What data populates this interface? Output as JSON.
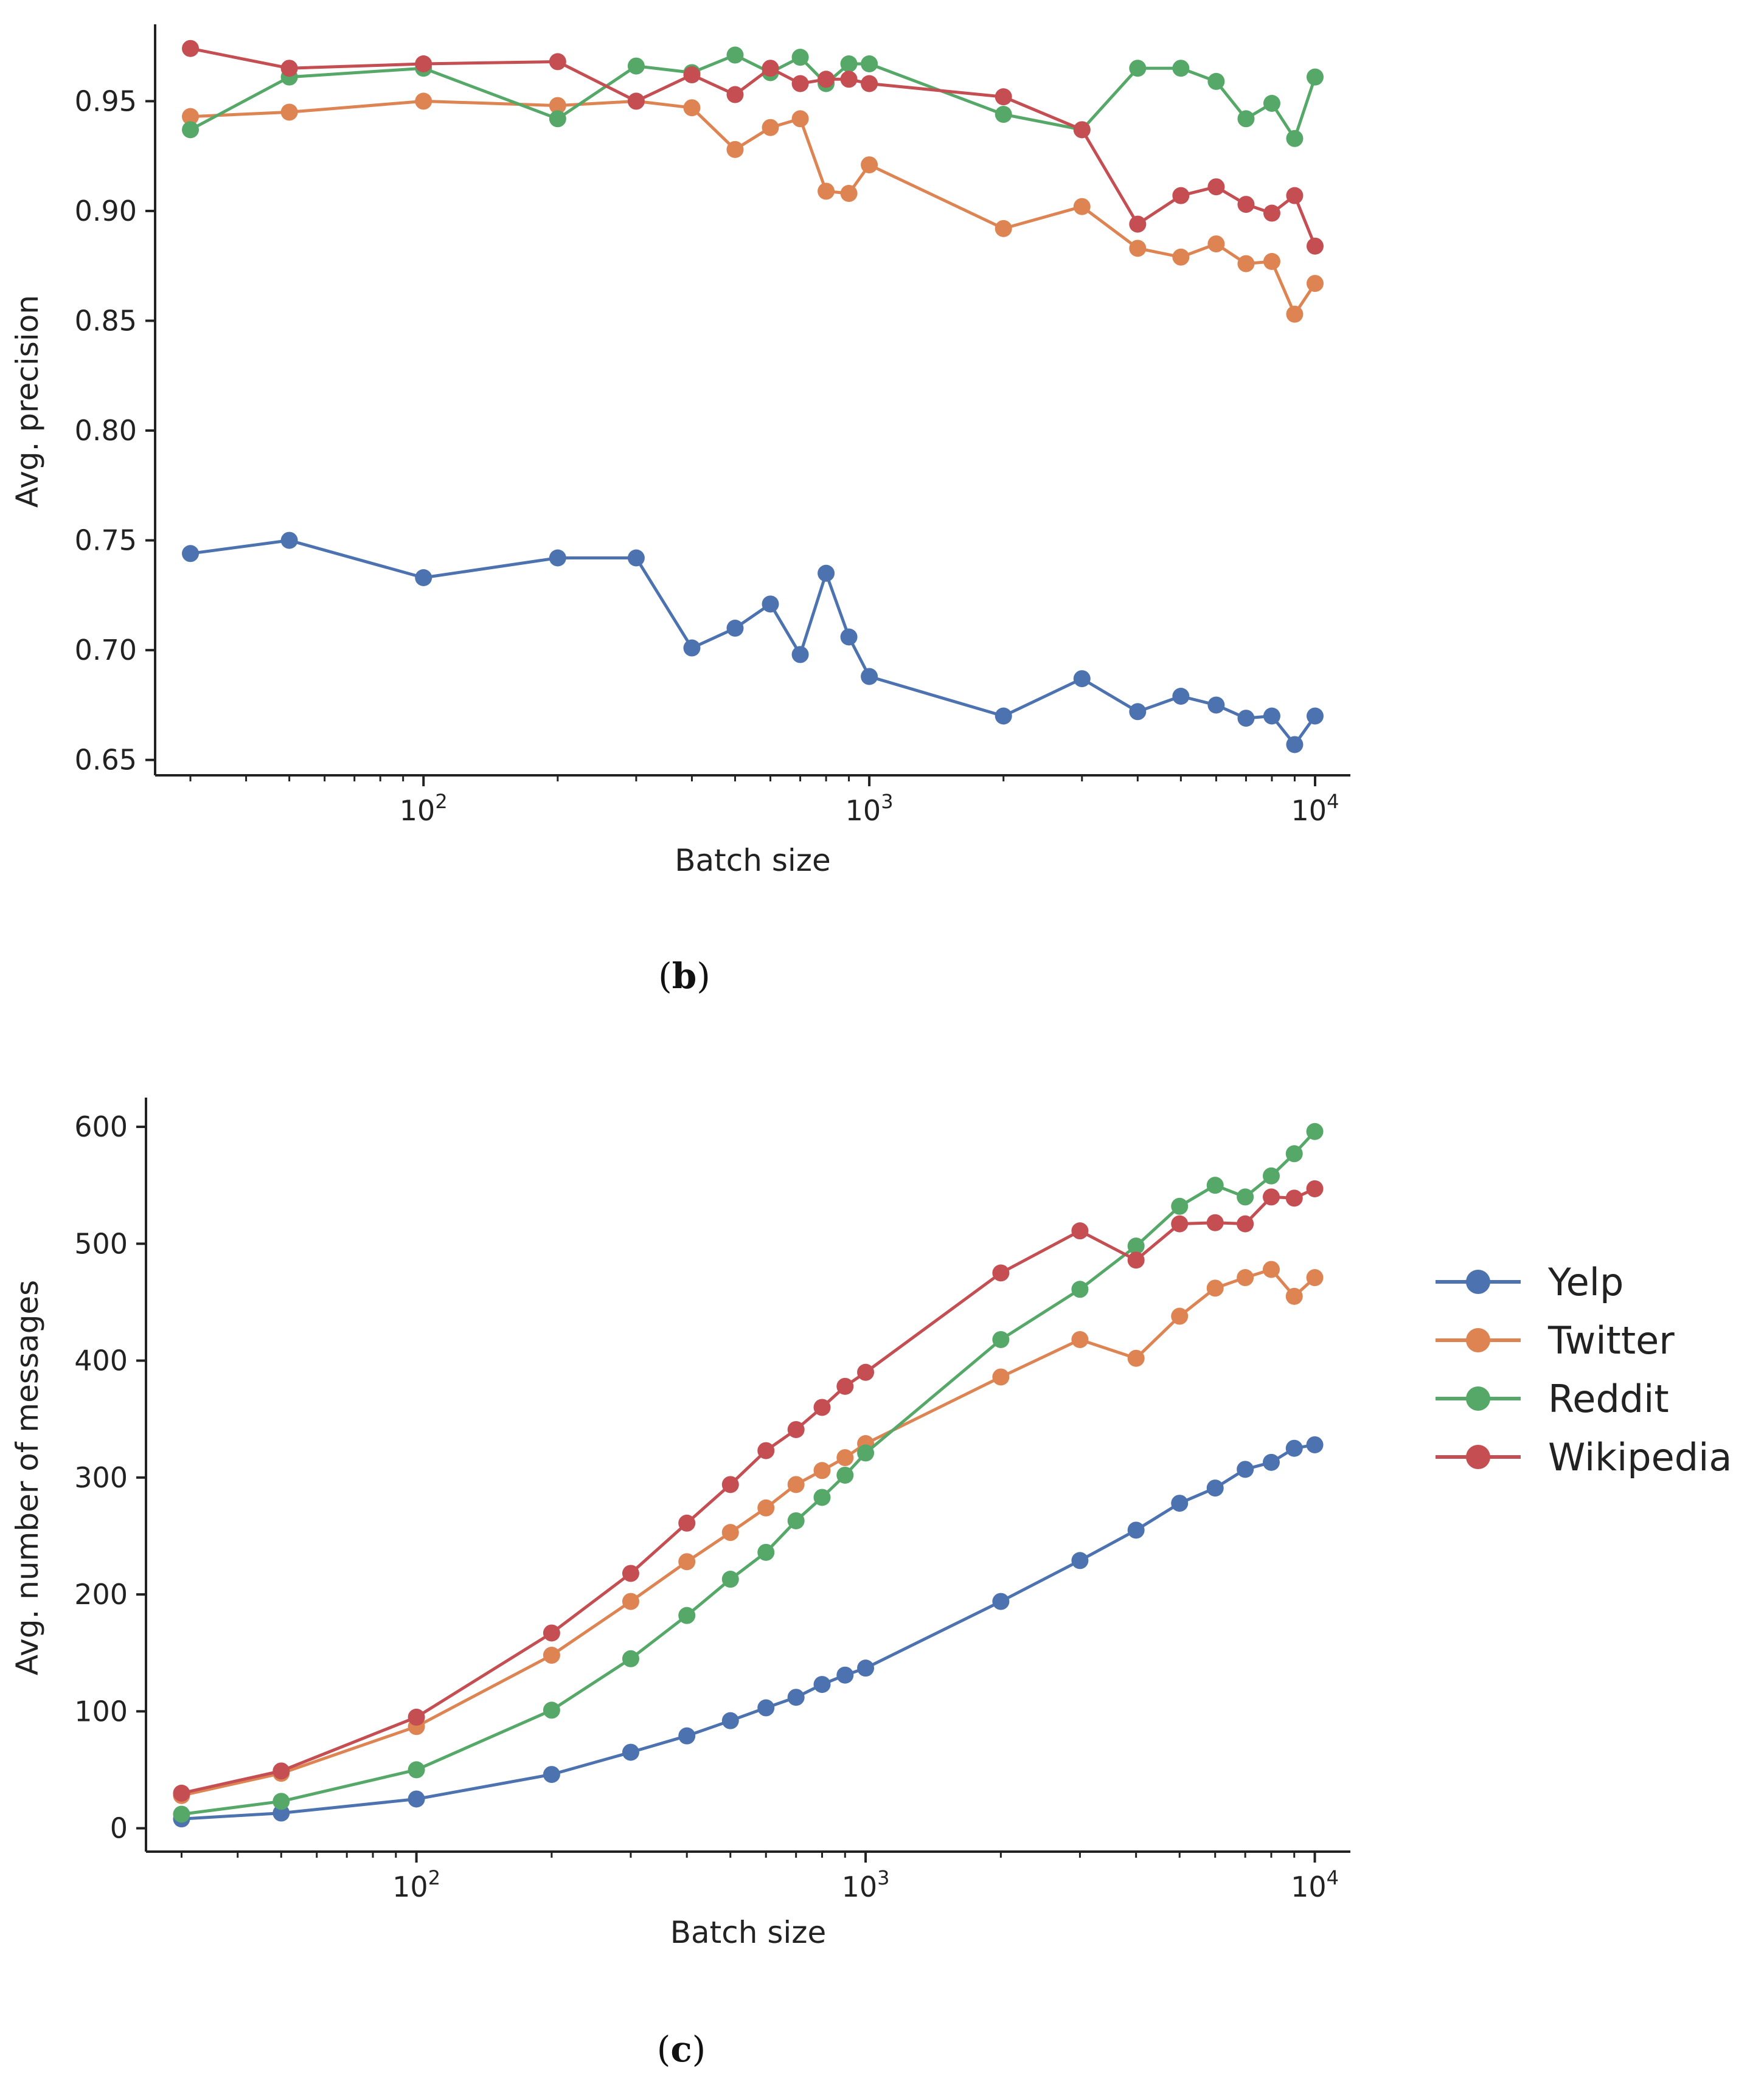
{
  "chart_data": [
    {
      "type": "line",
      "panel_label": "b",
      "xlabel": "Batch size",
      "ylabel": "Avg. precision",
      "xscale": "log",
      "xlim": [
        25,
        12000
      ],
      "ylim": [
        0.643,
        0.985
      ],
      "yticks": [
        0.65,
        0.7,
        0.75,
        0.8,
        0.85,
        0.9,
        0.95
      ],
      "ytick_labels": [
        "0.65",
        "0.70",
        "0.75",
        "0.80",
        "0.85",
        "0.90",
        "0.95"
      ],
      "xticks": [
        {
          "base": "10",
          "exp": "2",
          "value": 100
        },
        {
          "base": "10",
          "exp": "3",
          "value": 1000
        },
        {
          "base": "10",
          "exp": "4",
          "value": 10000
        }
      ],
      "x": [
        30,
        50,
        100,
        200,
        300,
        400,
        500,
        600,
        700,
        800,
        900,
        1000,
        2000,
        3000,
        4000,
        5000,
        6000,
        7000,
        8000,
        9000,
        10000
      ],
      "series": [
        {
          "name": "Yelp",
          "color": "#4c72b0",
          "values": [
            0.744,
            0.75,
            0.733,
            0.742,
            0.742,
            0.701,
            0.71,
            0.721,
            0.698,
            0.735,
            0.706,
            0.688,
            0.67,
            0.687,
            0.672,
            0.679,
            0.675,
            0.669,
            0.67,
            0.657,
            0.67
          ]
        },
        {
          "name": "Twitter",
          "color": "#dd8452",
          "values": [
            0.943,
            0.945,
            0.95,
            0.948,
            0.95,
            0.947,
            0.928,
            0.938,
            0.942,
            0.909,
            0.908,
            0.921,
            0.892,
            0.902,
            0.883,
            0.879,
            0.885,
            0.876,
            0.877,
            0.853,
            0.867
          ]
        },
        {
          "name": "Reddit",
          "color": "#55a868",
          "values": [
            0.937,
            0.961,
            0.965,
            0.942,
            0.966,
            0.963,
            0.971,
            0.963,
            0.97,
            0.958,
            0.967,
            0.967,
            0.944,
            0.937,
            0.965,
            0.965,
            0.959,
            0.942,
            0.949,
            0.933,
            0.961
          ]
        },
        {
          "name": "Wikipedia",
          "color": "#c44e52",
          "values": [
            0.974,
            0.965,
            0.967,
            0.968,
            0.95,
            0.962,
            0.953,
            0.965,
            0.958,
            0.96,
            0.96,
            0.958,
            0.952,
            0.937,
            0.894,
            0.907,
            0.911,
            0.903,
            0.899,
            0.907,
            0.884
          ]
        }
      ]
    },
    {
      "type": "line",
      "panel_label": "c",
      "xlabel": "Batch size",
      "ylabel": "Avg. number of messages",
      "xscale": "log",
      "xlim": [
        25,
        12000
      ],
      "ylim": [
        -20,
        625
      ],
      "yticks": [
        0,
        100,
        200,
        300,
        400,
        500,
        600
      ],
      "ytick_labels": [
        "0",
        "100",
        "200",
        "300",
        "400",
        "500",
        "600"
      ],
      "xticks": [
        {
          "base": "10",
          "exp": "2",
          "value": 100
        },
        {
          "base": "10",
          "exp": "3",
          "value": 1000
        },
        {
          "base": "10",
          "exp": "4",
          "value": 10000
        }
      ],
      "x": [
        30,
        50,
        100,
        200,
        300,
        400,
        500,
        600,
        700,
        800,
        900,
        1000,
        2000,
        3000,
        4000,
        5000,
        6000,
        7000,
        8000,
        9000,
        10000
      ],
      "series": [
        {
          "name": "Yelp",
          "color": "#4c72b0",
          "values": [
            8,
            13,
            25,
            46,
            65,
            79,
            92,
            103,
            112,
            123,
            131,
            137,
            194,
            229,
            255,
            278,
            291,
            307,
            313,
            325,
            328
          ]
        },
        {
          "name": "Twitter",
          "color": "#dd8452",
          "values": [
            28,
            47,
            87,
            148,
            194,
            228,
            253,
            274,
            294,
            306,
            317,
            329,
            386,
            418,
            402,
            438,
            462,
            471,
            478,
            455,
            471
          ]
        },
        {
          "name": "Reddit",
          "color": "#55a868",
          "values": [
            12,
            23,
            50,
            101,
            145,
            182,
            213,
            236,
            263,
            283,
            302,
            321,
            418,
            461,
            498,
            532,
            550,
            540,
            558,
            577,
            596
          ]
        },
        {
          "name": "Wikipedia",
          "color": "#c44e52",
          "values": [
            30,
            49,
            95,
            167,
            218,
            261,
            294,
            323,
            341,
            360,
            378,
            390,
            475,
            511,
            486,
            517,
            518,
            517,
            540,
            539,
            547
          ]
        }
      ]
    }
  ],
  "legend": [
    "Yelp",
    "Twitter",
    "Reddit",
    "Wikipedia"
  ]
}
